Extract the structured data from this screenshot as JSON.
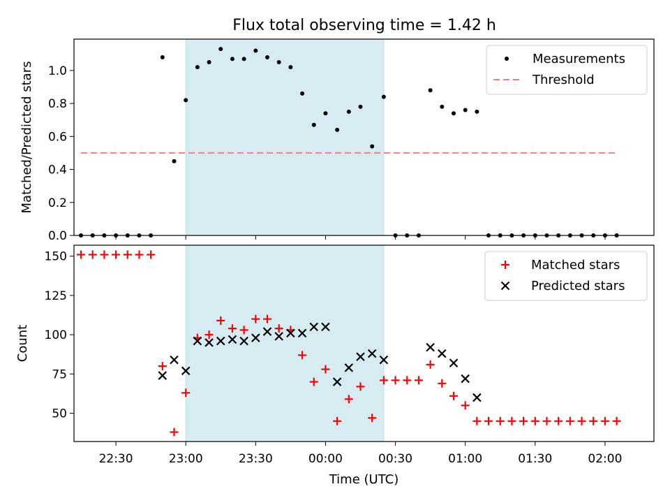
{
  "title": "Flux total observing time = 1.42 h",
  "chart_data": [
    {
      "type": "scatter",
      "ylabel": "Matched/Predicted stars",
      "xlabel": "",
      "x_range": [
        "22:12",
        "02:21"
      ],
      "ylim": [
        0,
        1.19
      ],
      "yticks": [
        "0.0",
        "0.2",
        "0.4",
        "0.6",
        "0.8",
        "1.0"
      ],
      "grid": false,
      "legend_position": "top-right",
      "shaded_interval": {
        "from": "23:00",
        "to": "00:25",
        "color": "#add8e6"
      },
      "series": [
        {
          "name": "Measurements",
          "marker": "dot",
          "color": "#000000",
          "points": [
            [
              "22:15",
              0
            ],
            [
              "22:20",
              0
            ],
            [
              "22:25",
              0
            ],
            [
              "22:30",
              0
            ],
            [
              "22:35",
              0
            ],
            [
              "22:40",
              0
            ],
            [
              "22:45",
              0
            ],
            [
              "22:50",
              1.08
            ],
            [
              "22:55",
              0.45
            ],
            [
              "23:00",
              0.82
            ],
            [
              "23:05",
              1.02
            ],
            [
              "23:10",
              1.05
            ],
            [
              "23:15",
              1.13
            ],
            [
              "23:20",
              1.07
            ],
            [
              "23:25",
              1.07
            ],
            [
              "23:30",
              1.12
            ],
            [
              "23:35",
              1.08
            ],
            [
              "23:40",
              1.05
            ],
            [
              "23:45",
              1.02
            ],
            [
              "23:50",
              0.86
            ],
            [
              "23:55",
              0.67
            ],
            [
              "00:00",
              0.74
            ],
            [
              "00:05",
              0.64
            ],
            [
              "00:10",
              0.75
            ],
            [
              "00:15",
              0.78
            ],
            [
              "00:20",
              0.54
            ],
            [
              "00:25",
              0.84
            ],
            [
              "00:30",
              0
            ],
            [
              "00:35",
              0
            ],
            [
              "00:40",
              0
            ],
            [
              "00:45",
              0.88
            ],
            [
              "00:50",
              0.78
            ],
            [
              "00:55",
              0.74
            ],
            [
              "01:00",
              0.76
            ],
            [
              "01:05",
              0.75
            ],
            [
              "01:10",
              0
            ],
            [
              "01:15",
              0
            ],
            [
              "01:20",
              0
            ],
            [
              "01:25",
              0
            ],
            [
              "01:30",
              0
            ],
            [
              "01:35",
              0
            ],
            [
              "01:40",
              0
            ],
            [
              "01:45",
              0
            ],
            [
              "01:50",
              0
            ],
            [
              "01:55",
              0
            ],
            [
              "02:00",
              0
            ],
            [
              "02:05",
              0
            ]
          ]
        },
        {
          "name": "Threshold",
          "style": "dashed-line",
          "color": "#f08080",
          "points": [
            [
              "22:15",
              0.5
            ],
            [
              "02:05",
              0.5
            ]
          ]
        }
      ]
    },
    {
      "type": "scatter",
      "ylabel": "Count",
      "xlabel": "Time (UTC)",
      "x_range": [
        "22:12",
        "02:21"
      ],
      "ylim": [
        32,
        157
      ],
      "yticks": [
        "50",
        "75",
        "100",
        "125",
        "150"
      ],
      "xticks": [
        "22:30",
        "23:00",
        "23:30",
        "00:00",
        "00:30",
        "01:00",
        "01:30",
        "02:00"
      ],
      "grid": false,
      "legend_position": "top-right",
      "shaded_interval": {
        "from": "23:00",
        "to": "00:25",
        "color": "#add8e6"
      },
      "series": [
        {
          "name": "Matched stars",
          "marker": "plus",
          "color": "#ff0000",
          "points": [
            [
              "22:15",
              151
            ],
            [
              "22:20",
              151
            ],
            [
              "22:25",
              151
            ],
            [
              "22:30",
              151
            ],
            [
              "22:35",
              151
            ],
            [
              "22:40",
              151
            ],
            [
              "22:45",
              151
            ],
            [
              "22:50",
              80
            ],
            [
              "22:55",
              38
            ],
            [
              "23:00",
              63
            ],
            [
              "23:05",
              98
            ],
            [
              "23:10",
              100
            ],
            [
              "23:15",
              109
            ],
            [
              "23:20",
              104
            ],
            [
              "23:25",
              103
            ],
            [
              "23:30",
              110
            ],
            [
              "23:35",
              110
            ],
            [
              "23:40",
              104
            ],
            [
              "23:45",
              103
            ],
            [
              "23:50",
              87
            ],
            [
              "23:55",
              70
            ],
            [
              "00:00",
              78
            ],
            [
              "00:05",
              45
            ],
            [
              "00:10",
              59
            ],
            [
              "00:15",
              67
            ],
            [
              "00:20",
              47
            ],
            [
              "00:25",
              71
            ],
            [
              "00:30",
              71
            ],
            [
              "00:35",
              71
            ],
            [
              "00:40",
              71
            ],
            [
              "00:45",
              81
            ],
            [
              "00:50",
              69
            ],
            [
              "00:55",
              61
            ],
            [
              "01:00",
              55
            ],
            [
              "01:05",
              45
            ],
            [
              "01:10",
              45
            ],
            [
              "01:15",
              45
            ],
            [
              "01:20",
              45
            ],
            [
              "01:25",
              45
            ],
            [
              "01:30",
              45
            ],
            [
              "01:35",
              45
            ],
            [
              "01:40",
              45
            ],
            [
              "01:45",
              45
            ],
            [
              "01:50",
              45
            ],
            [
              "01:55",
              45
            ],
            [
              "02:00",
              45
            ],
            [
              "02:05",
              45
            ]
          ]
        },
        {
          "name": "Predicted stars",
          "marker": "x",
          "color": "#000000",
          "points": [
            [
              "22:50",
              74
            ],
            [
              "22:55",
              84
            ],
            [
              "23:00",
              77
            ],
            [
              "23:05",
              96
            ],
            [
              "23:10",
              95
            ],
            [
              "23:15",
              96
            ],
            [
              "23:20",
              97
            ],
            [
              "23:25",
              96
            ],
            [
              "23:30",
              98
            ],
            [
              "23:35",
              102
            ],
            [
              "23:40",
              99
            ],
            [
              "23:45",
              101
            ],
            [
              "23:50",
              101
            ],
            [
              "23:55",
              105
            ],
            [
              "00:00",
              105
            ],
            [
              "00:05",
              70
            ],
            [
              "00:10",
              79
            ],
            [
              "00:15",
              86
            ],
            [
              "00:20",
              88
            ],
            [
              "00:25",
              84
            ],
            [
              "00:45",
              92
            ],
            [
              "00:50",
              88
            ],
            [
              "00:55",
              82
            ],
            [
              "01:00",
              72
            ],
            [
              "01:05",
              60
            ]
          ]
        }
      ]
    }
  ]
}
